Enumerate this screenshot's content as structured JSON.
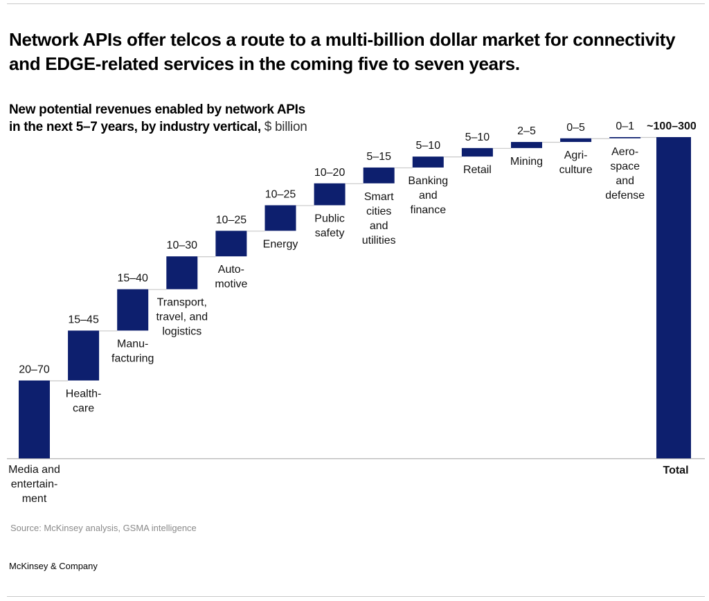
{
  "headline": "Network APIs offer telcos a route to a multi-billion dollar market for connectivity and EDGE-related services in the coming five to seven years.",
  "subtitle": {
    "line1": "New potential revenues enabled by network APIs",
    "line2": "in the next 5–7 years, by industry vertical,",
    "unit": "$ billion"
  },
  "source": "Source: McKinsey analysis, GSMA intelligence",
  "brand": "McKinsey & Company",
  "colors": {
    "bar": "#0d1f6e",
    "connector": "#c8c8c8",
    "baseline": "#b4b4b4",
    "source_text": "#8a8a8a"
  },
  "chart_data": {
    "type": "bar",
    "subtype": "waterfall",
    "title": "New potential revenues enabled by network APIs in the next 5–7 years, by industry vertical",
    "ylabel": "$ billion",
    "xlabel": "",
    "ylim": [
      0,
      300
    ],
    "grid": false,
    "legend": "none",
    "categories": [
      {
        "name": "Media and entertainment",
        "label_lines": [
          "Media and",
          "entertain-",
          "ment"
        ],
        "range_label": "20–70",
        "low": 20,
        "high": 70,
        "label_pos": "below-baseline"
      },
      {
        "name": "Healthcare",
        "label_lines": [
          "Health-",
          "care"
        ],
        "range_label": "15–45",
        "low": 15,
        "high": 45,
        "label_pos": "below-bar"
      },
      {
        "name": "Manufacturing",
        "label_lines": [
          "Manu-",
          "facturing"
        ],
        "range_label": "15–40",
        "low": 15,
        "high": 40,
        "label_pos": "below-bar"
      },
      {
        "name": "Transport, travel, and logistics",
        "label_lines": [
          "Transport,",
          "travel, and",
          "logistics"
        ],
        "range_label": "10–30",
        "low": 10,
        "high": 30,
        "label_pos": "below-bar"
      },
      {
        "name": "Automotive",
        "label_lines": [
          "Auto-",
          "motive"
        ],
        "range_label": "10–25",
        "low": 10,
        "high": 25,
        "label_pos": "below-bar"
      },
      {
        "name": "Energy",
        "label_lines": [
          "Energy"
        ],
        "range_label": "10–25",
        "low": 10,
        "high": 25,
        "label_pos": "below-bar"
      },
      {
        "name": "Public safety",
        "label_lines": [
          "Public",
          "safety"
        ],
        "range_label": "10–20",
        "low": 10,
        "high": 20,
        "label_pos": "below-bar"
      },
      {
        "name": "Smart cities and utilities",
        "label_lines": [
          "Smart",
          "cities",
          "and",
          "utilities"
        ],
        "range_label": "5–15",
        "low": 5,
        "high": 15,
        "label_pos": "below-bar"
      },
      {
        "name": "Banking and finance",
        "label_lines": [
          "Banking",
          "and",
          "finance"
        ],
        "range_label": "5–10",
        "low": 5,
        "high": 10,
        "label_pos": "below-bar"
      },
      {
        "name": "Retail",
        "label_lines": [
          "Retail"
        ],
        "range_label": "5–10",
        "low": 5,
        "high": 10,
        "label_pos": "below-bar"
      },
      {
        "name": "Mining",
        "label_lines": [
          "Mining"
        ],
        "range_label": "2–5",
        "low": 2,
        "high": 5,
        "label_pos": "below-bar"
      },
      {
        "name": "Agriculture",
        "label_lines": [
          "Agri-",
          "culture"
        ],
        "range_label": "0–5",
        "low": 0,
        "high": 5,
        "label_pos": "below-bar"
      },
      {
        "name": "Aerospace and defense",
        "label_lines": [
          "Aero-",
          "space",
          "and",
          "defense"
        ],
        "range_label": "0–1",
        "low": 0,
        "high": 1,
        "label_pos": "below-bar"
      }
    ],
    "total": {
      "name": "Total",
      "label_lines": [
        "Total"
      ],
      "range_label": "~100–300",
      "low": 100,
      "high": 300
    },
    "bar_display_heights_billion": [
      64,
      41,
      34,
      27,
      21,
      21,
      18,
      13,
      9,
      7,
      5,
      3,
      1
    ],
    "total_display_height_billion": 264
  }
}
